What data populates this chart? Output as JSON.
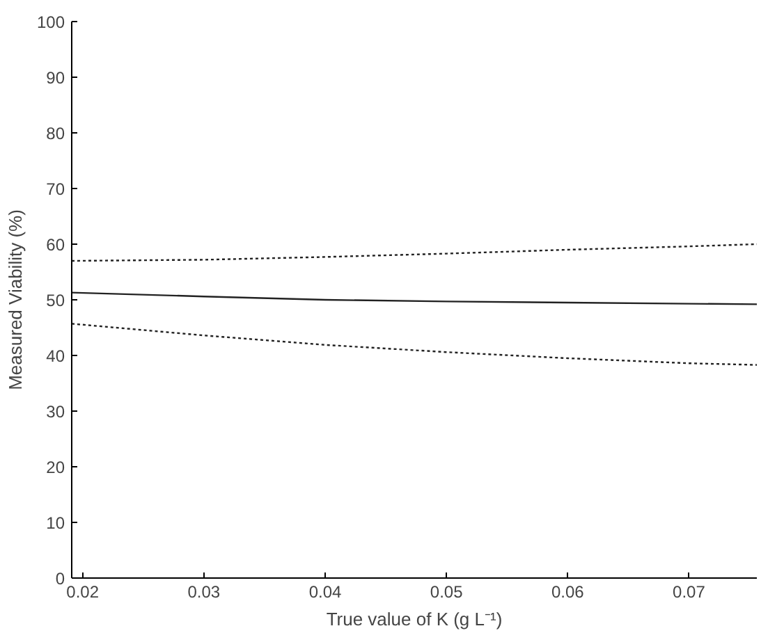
{
  "chart_data": {
    "type": "line",
    "xlabel": "True value of K (g L⁻¹)",
    "ylabel": "Measured Viability (%)",
    "x": [
      0.0191,
      0.03,
      0.04,
      0.05,
      0.06,
      0.07,
      0.0756
    ],
    "series": [
      {
        "color": "#222222",
        "line_style": "dotted",
        "values": [
          57.0,
          57.2,
          57.7,
          58.3,
          59.0,
          59.6,
          60.0
        ]
      },
      {
        "color": "#222222",
        "line_style": "solid",
        "values": [
          51.3,
          50.6,
          50.0,
          49.7,
          49.5,
          49.3,
          49.2
        ]
      },
      {
        "color": "#222222",
        "line_style": "dotted",
        "values": [
          45.7,
          43.6,
          41.9,
          40.6,
          39.5,
          38.6,
          38.3
        ]
      }
    ],
    "xlim": [
      0.0191,
      0.0756
    ],
    "xticks": [
      0.02,
      0.03,
      0.04,
      0.05,
      0.06,
      0.07
    ],
    "ylim": [
      0,
      100
    ],
    "yticks": [
      0,
      10,
      20,
      30,
      40,
      50,
      60,
      70,
      80,
      90,
      100
    ],
    "marker": "none"
  }
}
